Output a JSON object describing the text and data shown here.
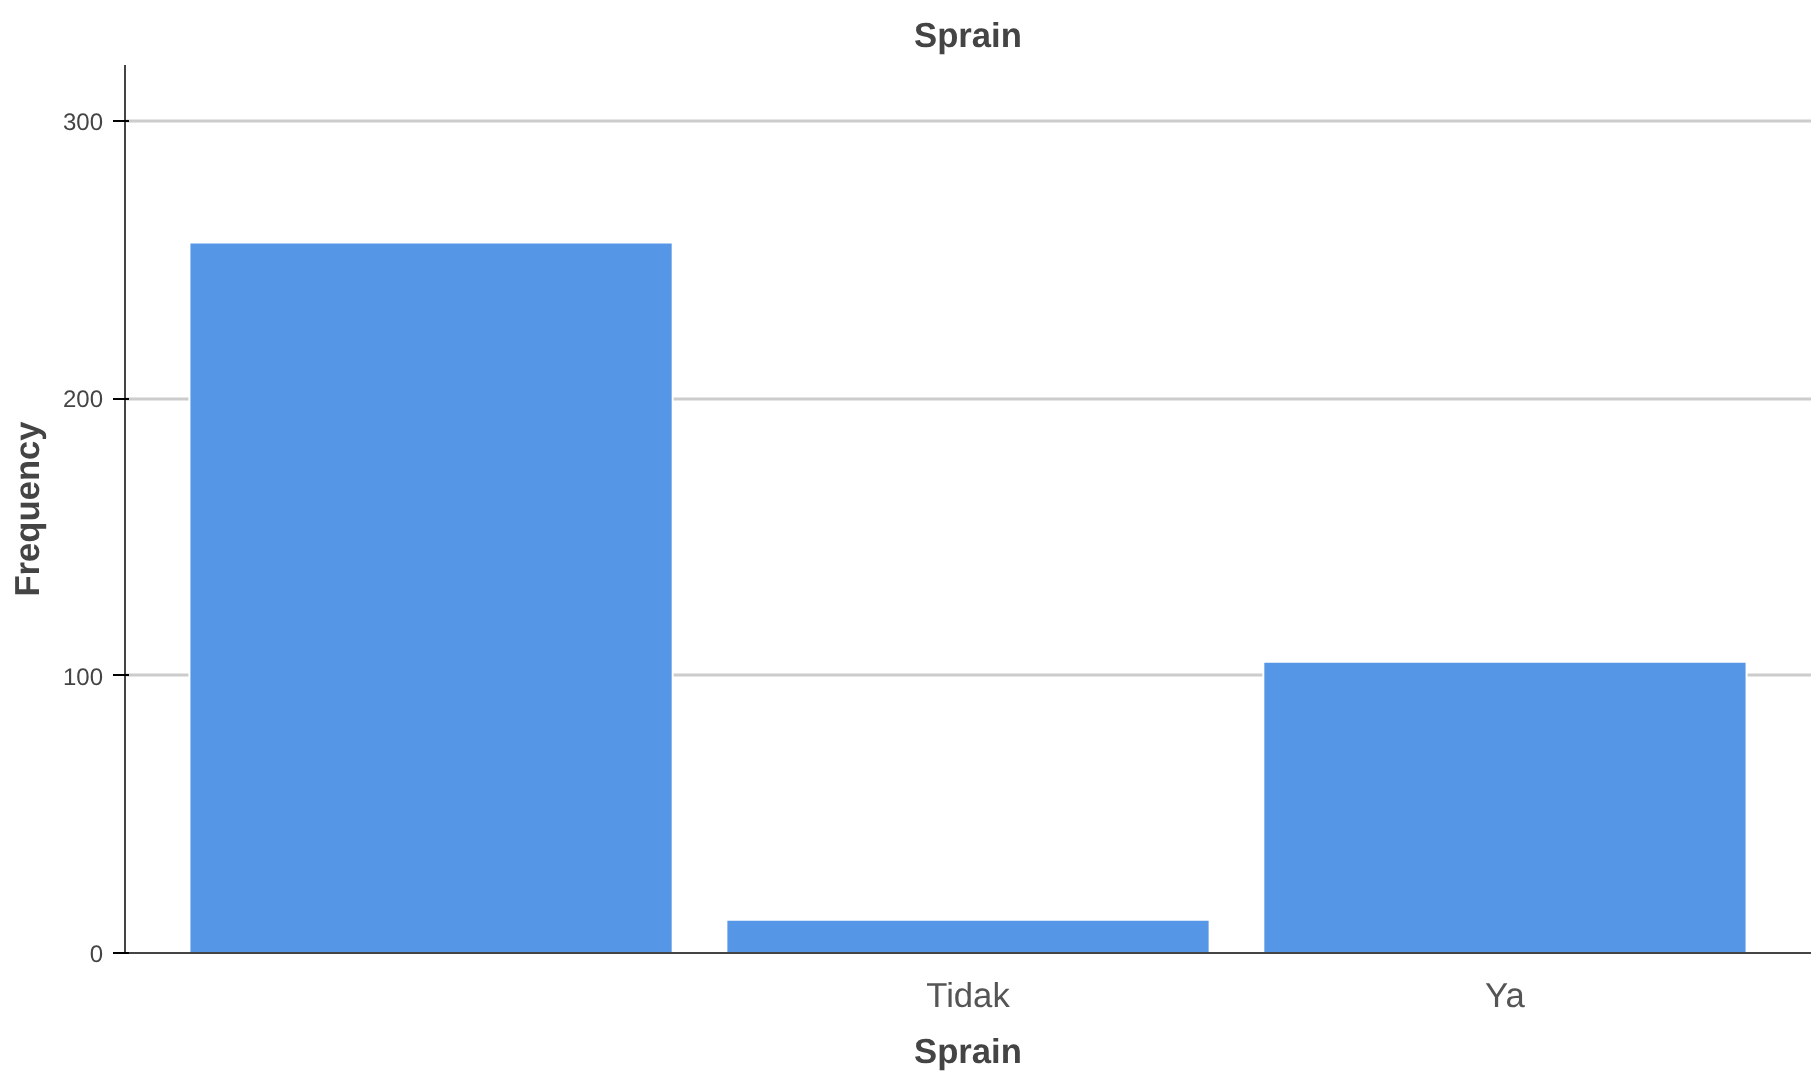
{
  "chart_data": {
    "type": "bar",
    "title": "Sprain",
    "xlabel": "Sprain",
    "ylabel": "Frequency",
    "categories": [
      null,
      "Tidak",
      "Ya"
    ],
    "values": [
      256,
      12,
      105
    ],
    "color": "#5596e6",
    "ylim": [
      0,
      320
    ],
    "yticks": [
      0,
      100,
      200,
      300
    ],
    "grid": "y"
  }
}
